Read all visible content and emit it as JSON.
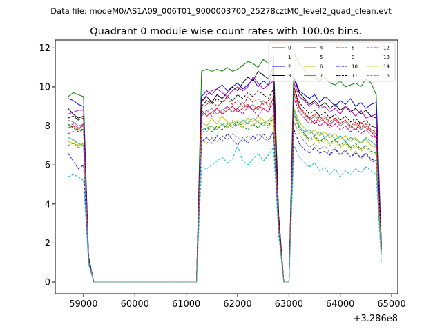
{
  "header": {
    "suptitle": "Data file: modeM0/AS1A09_006T01_9000003700_25278cztM0_level2_quad_clean.evt"
  },
  "chart_data": {
    "type": "line",
    "title": "Quadrant 0 module wise count rates with 100.0s bins.",
    "xlabel": "",
    "ylabel": "",
    "x_offset_label": "+3.286e8",
    "xlim": [
      58450,
      65120
    ],
    "ylim": [
      -0.6,
      12.4
    ],
    "xticks": [
      59000,
      60000,
      61000,
      62000,
      63000,
      64000,
      65000
    ],
    "yticks": [
      0,
      2,
      4,
      6,
      8,
      10,
      12
    ],
    "legend_position": "top-right",
    "x": [
      58700,
      58800,
      58900,
      59000,
      59100,
      59200,
      61200,
      61300,
      61400,
      61500,
      61600,
      61700,
      61800,
      61900,
      62000,
      62100,
      62200,
      62300,
      62400,
      62500,
      62600,
      62700,
      62800,
      62900,
      63000,
      63100,
      63200,
      63300,
      63400,
      63500,
      63600,
      63700,
      63800,
      63900,
      64000,
      64100,
      64200,
      64300,
      64400,
      64500,
      64600,
      64700,
      64800
    ],
    "series": [
      {
        "name": "0",
        "color": "#ff0000",
        "dashed": false,
        "values": [
          7.9,
          8.0,
          7.8,
          8.1,
          1.2,
          0,
          0,
          8.8,
          8.5,
          8.7,
          8.9,
          8.6,
          8.8,
          9.0,
          8.7,
          8.9,
          9.1,
          8.8,
          9.0,
          8.9,
          8.7,
          9.5,
          3.0,
          0,
          0,
          10.0,
          9.0,
          8.6,
          8.4,
          8.1,
          8.5,
          8.2,
          8.0,
          8.4,
          8.1,
          8.3,
          8.0,
          7.8,
          8.2,
          7.9,
          7.7,
          7.4,
          1.8
        ]
      },
      {
        "name": "1",
        "color": "#008000",
        "dashed": false,
        "values": [
          9.5,
          9.7,
          9.6,
          9.5,
          1.3,
          0,
          0,
          10.8,
          10.9,
          10.8,
          10.9,
          10.8,
          11.0,
          10.8,
          10.9,
          11.1,
          11.3,
          11.2,
          11.0,
          11.4,
          11.2,
          11.6,
          3.5,
          0,
          0,
          11.7,
          11.2,
          10.9,
          10.5,
          10.6,
          10.3,
          10.5,
          10.2,
          10.1,
          10.3,
          10.0,
          10.1,
          10.2,
          10.0,
          10.4,
          10.2,
          9.6,
          2.0
        ]
      },
      {
        "name": "2",
        "color": "#0000ff",
        "dashed": false,
        "values": [
          9.4,
          9.3,
          9.1,
          9.0,
          1.3,
          0,
          0,
          9.5,
          9.8,
          9.6,
          9.9,
          10.1,
          9.8,
          10.0,
          10.2,
          9.9,
          10.1,
          10.4,
          10.0,
          10.3,
          10.1,
          10.8,
          3.3,
          0,
          0,
          10.5,
          9.8,
          9.6,
          9.4,
          9.6,
          9.2,
          9.5,
          9.3,
          9.0,
          9.3,
          9.1,
          9.4,
          9.0,
          9.2,
          8.9,
          9.1,
          9.2,
          1.9
        ]
      },
      {
        "name": "3",
        "color": "#000000",
        "dashed": false,
        "values": [
          8.9,
          8.6,
          8.4,
          8.5,
          1.2,
          0,
          0,
          9.3,
          9.5,
          9.2,
          9.6,
          9.4,
          9.7,
          10.0,
          9.8,
          10.2,
          10.5,
          10.3,
          10.8,
          10.6,
          10.4,
          11.0,
          3.4,
          0,
          0,
          10.4,
          9.7,
          9.4,
          9.1,
          9.3,
          9.0,
          9.2,
          8.9,
          9.1,
          8.8,
          9.0,
          8.7,
          8.9,
          8.6,
          8.8,
          8.5,
          8.4,
          1.8
        ]
      },
      {
        "name": "4",
        "color": "#bf00bf",
        "dashed": false,
        "values": [
          8.6,
          8.7,
          8.8,
          8.8,
          1.2,
          0,
          0,
          9.2,
          9.6,
          9.8,
          9.9,
          9.7,
          9.5,
          9.8,
          10.0,
          9.8,
          10.0,
          10.5,
          10.2,
          9.9,
          10.1,
          10.3,
          3.3,
          0,
          0,
          10.2,
          9.5,
          9.3,
          9.0,
          9.2,
          8.9,
          9.0,
          8.7,
          8.9,
          8.6,
          9.0,
          8.8,
          8.5,
          8.8,
          8.4,
          8.5,
          8.6,
          1.8
        ]
      },
      {
        "name": "5",
        "color": "#20b2aa",
        "dashed": false,
        "values": [
          7.4,
          7.3,
          7.1,
          7.0,
          1.1,
          0,
          0,
          7.8,
          7.9,
          8.0,
          7.8,
          8.1,
          7.9,
          8.2,
          8.0,
          8.3,
          8.1,
          8.4,
          8.2,
          8.0,
          8.3,
          8.5,
          2.9,
          0,
          0,
          8.8,
          8.0,
          7.7,
          7.8,
          7.5,
          7.7,
          7.4,
          7.6,
          7.3,
          7.5,
          7.2,
          7.4,
          7.3,
          7.1,
          7.4,
          7.2,
          7.0,
          1.6
        ]
      },
      {
        "name": "6",
        "color": "#bfbf00",
        "dashed": false,
        "values": [
          7.2,
          7.1,
          7.0,
          7.1,
          1.1,
          0,
          0,
          8.2,
          8.0,
          8.4,
          8.1,
          8.5,
          8.2,
          8.0,
          8.3,
          8.1,
          8.4,
          8.2,
          8.5,
          8.3,
          8.1,
          8.6,
          2.9,
          0,
          0,
          8.9,
          8.2,
          7.9,
          7.6,
          7.8,
          7.5,
          7.7,
          7.4,
          7.6,
          7.3,
          7.5,
          7.2,
          7.4,
          7.1,
          7.3,
          7.0,
          6.9,
          1.6
        ]
      },
      {
        "name": "7",
        "color": "#808080",
        "dashed": false,
        "values": [
          8.3,
          8.2,
          8.0,
          8.1,
          1.2,
          0,
          0,
          8.5,
          8.7,
          8.9,
          8.6,
          8.8,
          9.0,
          8.7,
          8.9,
          9.2,
          8.9,
          9.1,
          8.8,
          9.3,
          9.0,
          9.4,
          3.1,
          0,
          0,
          9.6,
          8.9,
          8.6,
          8.3,
          8.5,
          8.2,
          8.4,
          8.1,
          8.3,
          8.0,
          8.2,
          7.9,
          8.1,
          7.8,
          8.0,
          7.7,
          7.6,
          1.7
        ]
      },
      {
        "name": "8",
        "color": "#ff0000",
        "dashed": true,
        "values": [
          7.6,
          7.7,
          7.9,
          7.8,
          1.1,
          0,
          0,
          8.9,
          9.1,
          9.3,
          9.0,
          9.2,
          9.4,
          9.1,
          9.3,
          9.0,
          9.5,
          9.2,
          9.4,
          9.1,
          9.3,
          9.6,
          3.1,
          0,
          0,
          9.7,
          9.0,
          8.7,
          8.4,
          8.6,
          8.3,
          8.5,
          8.2,
          8.4,
          8.1,
          8.3,
          8.0,
          8.2,
          7.9,
          8.1,
          7.8,
          7.7,
          1.7
        ]
      },
      {
        "name": "9",
        "color": "#008000",
        "dashed": true,
        "values": [
          8.1,
          7.9,
          7.7,
          7.8,
          1.1,
          0,
          0,
          7.6,
          7.9,
          7.7,
          8.0,
          7.8,
          8.1,
          7.9,
          8.2,
          8.0,
          7.8,
          8.1,
          7.9,
          8.2,
          8.0,
          8.4,
          2.8,
          0,
          0,
          8.6,
          7.9,
          7.6,
          7.3,
          7.5,
          7.2,
          7.4,
          7.1,
          7.3,
          7.0,
          7.2,
          6.9,
          7.1,
          6.8,
          7.0,
          6.7,
          6.6,
          1.5
        ]
      },
      {
        "name": "10",
        "color": "#0000ff",
        "dashed": true,
        "values": [
          6.6,
          6.2,
          5.8,
          6.0,
          1.0,
          0,
          0,
          7.2,
          7.4,
          7.1,
          7.5,
          7.2,
          7.6,
          7.3,
          7.0,
          7.4,
          7.1,
          7.5,
          7.2,
          7.6,
          7.3,
          7.7,
          2.6,
          0,
          0,
          7.8,
          7.1,
          6.8,
          6.6,
          6.9,
          6.6,
          6.7,
          6.5,
          6.8,
          6.5,
          6.7,
          6.4,
          6.6,
          6.4,
          6.6,
          6.3,
          6.2,
          1.4
        ]
      },
      {
        "name": "11",
        "color": "#000000",
        "dashed": true,
        "values": [
          8.4,
          8.5,
          8.3,
          8.4,
          1.2,
          0,
          0,
          9.0,
          9.3,
          9.1,
          9.4,
          9.2,
          9.5,
          9.3,
          9.6,
          9.4,
          9.7,
          9.5,
          9.8,
          9.6,
          9.4,
          9.9,
          3.2,
          0,
          0,
          9.9,
          9.2,
          8.9,
          8.6,
          8.8,
          8.5,
          8.7,
          8.4,
          8.6,
          8.3,
          8.5,
          8.2,
          8.4,
          8.1,
          8.3,
          8.0,
          7.9,
          1.7
        ]
      },
      {
        "name": "12",
        "color": "#bf00bf",
        "dashed": true,
        "values": [
          8.0,
          8.1,
          7.9,
          8.0,
          1.1,
          0,
          0,
          8.6,
          8.8,
          8.5,
          8.9,
          8.6,
          9.0,
          8.7,
          8.9,
          8.6,
          9.0,
          8.8,
          8.5,
          8.9,
          8.7,
          9.2,
          3.0,
          0,
          0,
          9.4,
          8.7,
          8.4,
          8.1,
          8.3,
          8.0,
          8.2,
          7.9,
          8.1,
          7.8,
          8.0,
          7.7,
          7.9,
          7.6,
          7.8,
          7.5,
          7.4,
          1.6
        ]
      },
      {
        "name": "13",
        "color": "#00bfbf",
        "dashed": true,
        "values": [
          5.4,
          5.5,
          5.4,
          5.2,
          0.9,
          0,
          0,
          5.9,
          5.8,
          6.0,
          6.2,
          6.4,
          6.1,
          6.3,
          7.0,
          6.2,
          6.0,
          6.3,
          6.6,
          6.2,
          6.5,
          6.9,
          2.4,
          0,
          0,
          7.0,
          6.4,
          6.1,
          5.9,
          6.1,
          5.7,
          5.9,
          5.5,
          5.8,
          5.4,
          5.7,
          5.5,
          5.8,
          5.6,
          5.9,
          5.7,
          5.5,
          1.0
        ]
      },
      {
        "name": "14",
        "color": "#bfbf00",
        "dashed": true,
        "values": [
          7.2,
          7.3,
          7.0,
          7.1,
          1.1,
          0,
          0,
          7.9,
          7.7,
          8.0,
          7.8,
          8.2,
          7.9,
          8.3,
          8.1,
          7.9,
          8.2,
          8.0,
          8.3,
          8.1,
          7.9,
          8.4,
          2.8,
          0,
          0,
          8.5,
          7.8,
          7.5,
          7.2,
          7.4,
          7.1,
          7.3,
          7.0,
          7.2,
          6.9,
          7.1,
          6.8,
          7.0,
          6.7,
          6.9,
          6.6,
          6.5,
          1.5
        ]
      },
      {
        "name": "15",
        "color": "#808080",
        "dashed": true,
        "values": [
          7.0,
          7.1,
          6.9,
          7.0,
          1.1,
          0,
          0,
          7.3,
          7.1,
          7.4,
          7.2,
          7.5,
          7.3,
          7.6,
          7.4,
          7.2,
          7.5,
          7.3,
          7.6,
          7.4,
          7.2,
          7.7,
          2.7,
          0,
          0,
          8.2,
          7.6,
          7.2,
          6.9,
          7.1,
          6.8,
          7.0,
          6.6,
          6.9,
          6.5,
          6.8,
          6.4,
          6.7,
          6.3,
          6.6,
          6.2,
          6.1,
          1.4
        ]
      }
    ]
  }
}
